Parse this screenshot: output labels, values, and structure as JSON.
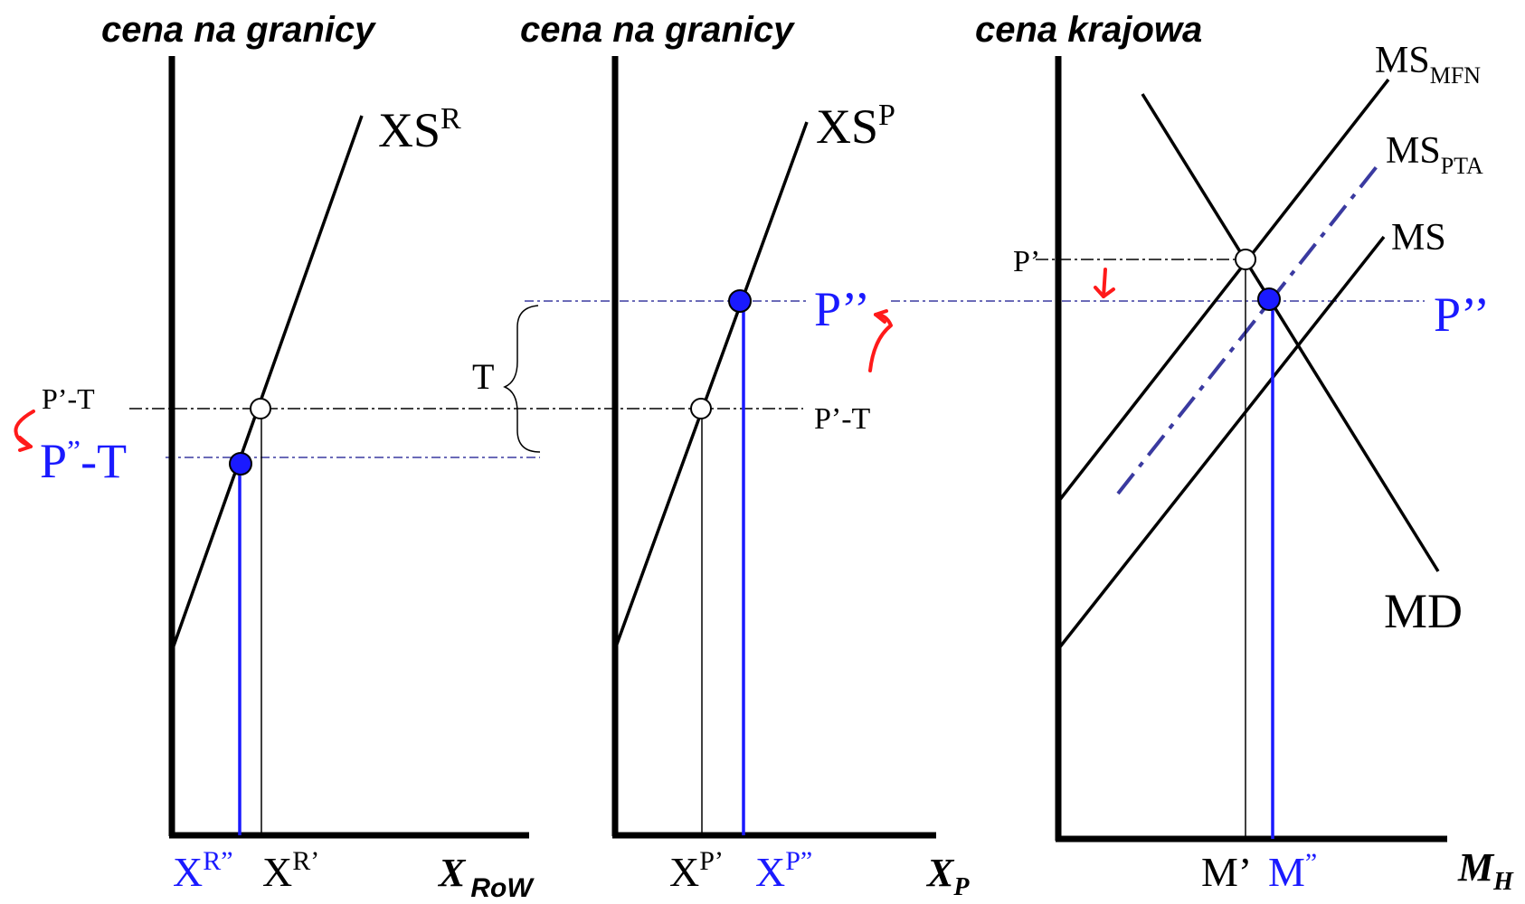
{
  "panel_titles": {
    "left": "cena  na granicy",
    "middle": "cena  na granicy",
    "right": "cena krajowa"
  },
  "left_panel": {
    "curve_main": "XS",
    "curve_sup": "R",
    "axis_main": "X",
    "axis_sub": "RoW",
    "price_old": "P’-T",
    "price_new_main": "P",
    "price_new_sup": "”",
    "price_new_tail": "-T",
    "qty_new_main": "X",
    "qty_new_sup": "R”",
    "qty_old_main": "X",
    "qty_old_sup": "R’"
  },
  "middle_panel": {
    "curve_main": "XS",
    "curve_sup": "P",
    "axis_main": "X",
    "axis_sub": "P",
    "tariff": "T",
    "price_new": "P’’",
    "price_old": "P’-T",
    "qty_old_main": "X",
    "qty_old_sup": "P’",
    "qty_new_main": "X",
    "qty_new_sup": "P”"
  },
  "right_panel": {
    "ms_mfn_main": "MS",
    "ms_mfn_sub": "MFN",
    "ms_pta_main": "MS",
    "ms_pta_sub": "PTA",
    "ms": "MS",
    "md": "MD",
    "price_old": "P’",
    "price_new": "P’’",
    "qty_old": "M’",
    "qty_new_main": "M",
    "qty_new_sup": "”",
    "axis_main": "M",
    "axis_sub": "H"
  },
  "colors": {
    "black": "#000000",
    "blue": "#1a1aff",
    "dash_blue": "#3a3aa0",
    "arrow_red": "#ff1a1a"
  }
}
